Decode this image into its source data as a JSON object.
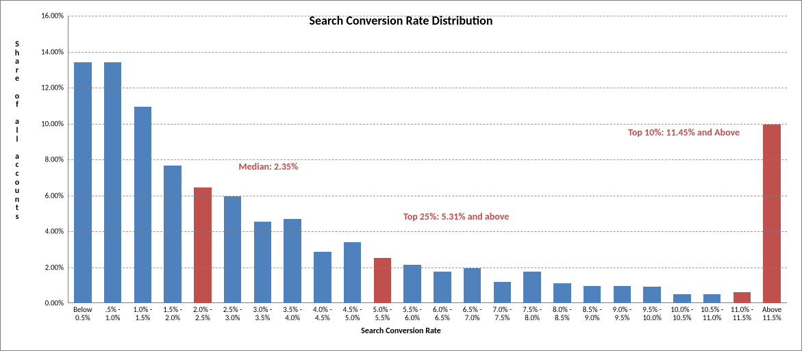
{
  "chart": {
    "type": "bar",
    "title": "Search Conversion Rate Distribution",
    "title_fontsize": 18,
    "title_color": "#000000",
    "background_color": "#ffffff",
    "border_color": "#7f7f7f",
    "grid_color": "#7f7f7f",
    "axis_color": "#808080",
    "tick_fontsize": 11,
    "tick_color": "#000000",
    "xlabel": "Search Conversion Rate",
    "xlabel_fontsize": 12,
    "ylabel": "Share of all accounts",
    "ylabel_fontsize": 12,
    "ylim": [
      0,
      16
    ],
    "ytick_step": 2,
    "ytick_format_suffix": ".00%",
    "bar_default_color": "#4f81bd",
    "bar_highlight_color": "#c0504d",
    "bar_width_ratio": 0.58,
    "categories": [
      "Below\n0.5%",
      ".5% -\n1.0%",
      "1.0% -\n1.5%",
      "1.5% -\n2.0%",
      "2.0% -\n2.5%",
      "2.5% -\n3.0%",
      "3.0% -\n3.5%",
      "3.5% -\n4.0%",
      "4.0% -\n4.5%",
      "4.5% -\n5.0%",
      "5.0% -\n5.5%",
      "5.5% -\n6.0%",
      "6.0% -\n6.5%",
      "6.5% -\n7.0%",
      "7.0% -\n7.5%",
      "7.5% -\n8.0%",
      "8.0% -\n8.5%",
      "8.5% -\n9.0%",
      "9.0% -\n9.5%",
      "9.5% -\n10.0%",
      "10.0% -\n10.5%",
      "10.5% -\n11.0%",
      "11.0% -\n11.5%",
      "Above\n11.5%"
    ],
    "values": [
      13.4,
      13.4,
      10.95,
      7.65,
      6.45,
      5.95,
      4.55,
      4.7,
      2.85,
      3.4,
      2.5,
      2.15,
      1.75,
      1.95,
      1.2,
      1.75,
      1.1,
      0.95,
      0.95,
      0.9,
      0.5,
      0.5,
      0.6,
      9.95
    ],
    "highlight_indices": [
      4,
      10,
      22,
      23
    ],
    "annotations": [
      {
        "text": "Median: 2.35%",
        "color": "#c0504d",
        "fontsize": 14,
        "x_bar_index": 5.7,
        "y_value": 7.4
      },
      {
        "text": "Top 25%: 5.31% and above",
        "color": "#c0504d",
        "fontsize": 14,
        "x_bar_index": 11.2,
        "y_value": 4.6
      },
      {
        "text": "Top 10%: 11.45% and Above",
        "color": "#c0504d",
        "fontsize": 14,
        "x_bar_index": 18.7,
        "y_value": 9.3
      }
    ]
  }
}
